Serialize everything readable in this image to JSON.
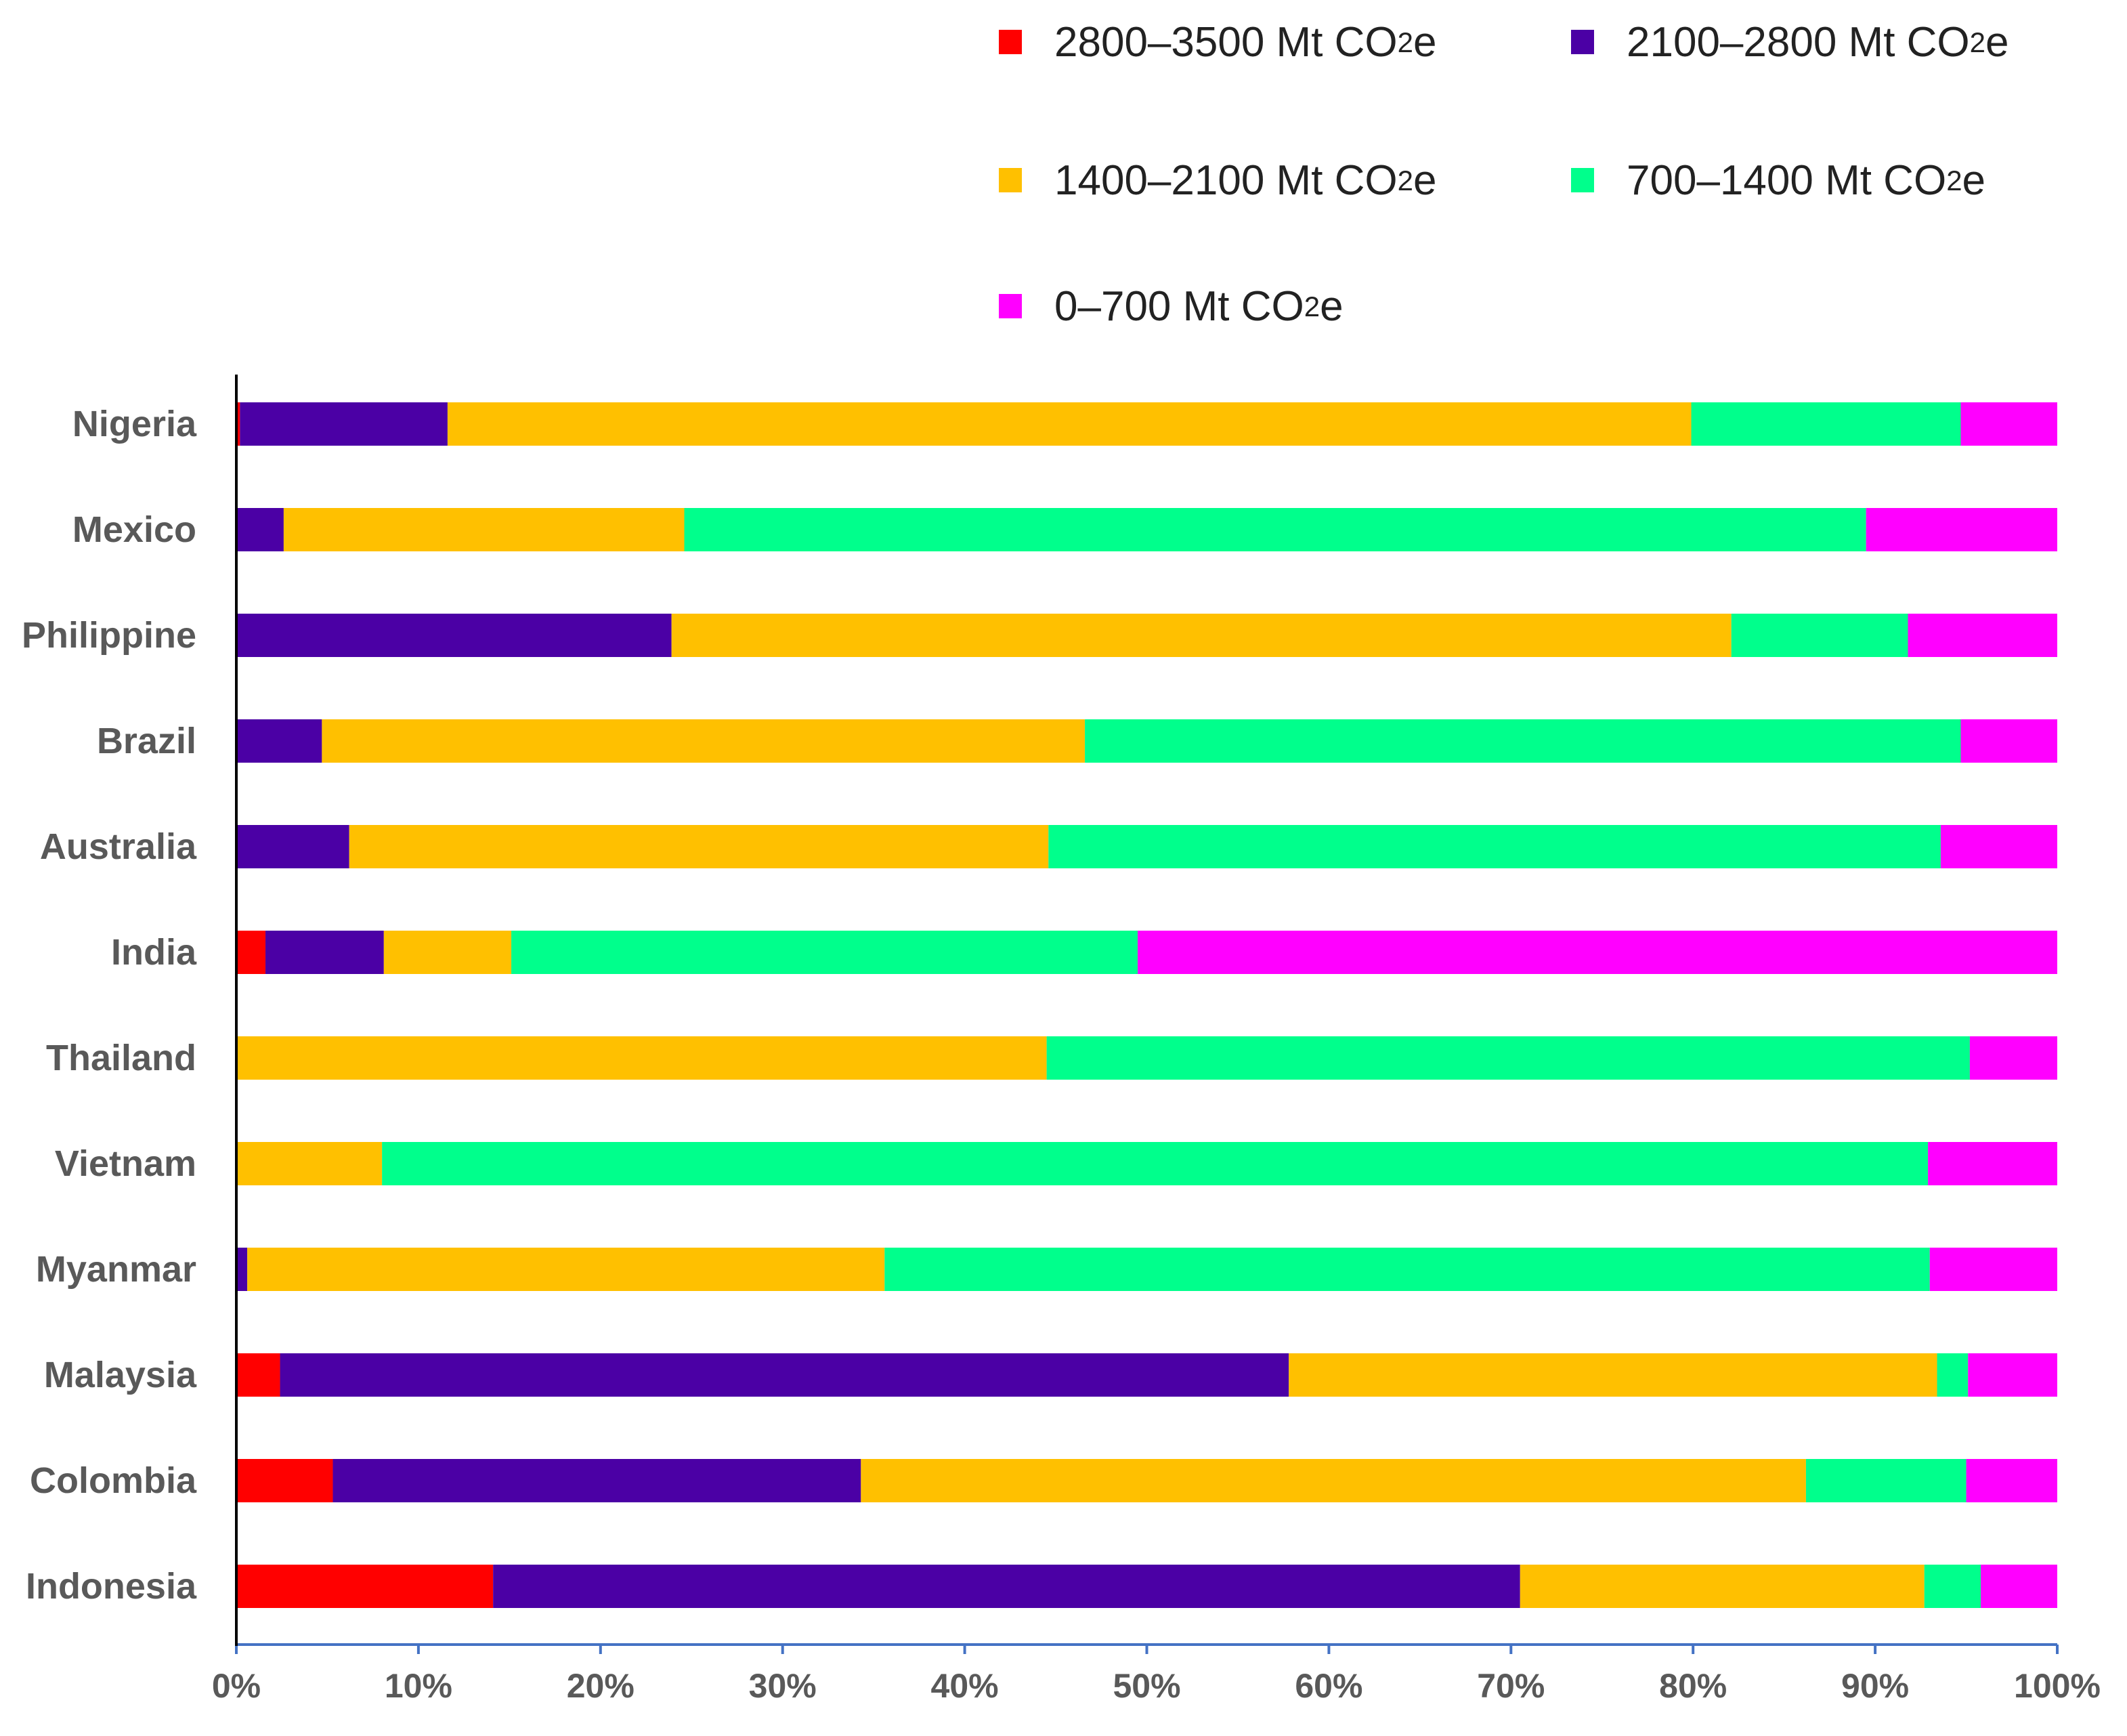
{
  "chart_data": {
    "type": "bar",
    "orientation": "horizontal",
    "stacked": "percent",
    "title": "",
    "xlabel": "",
    "ylabel": "",
    "xlim": [
      0,
      100
    ],
    "legend_position": "top-right",
    "grid": false,
    "categories": [
      "Nigeria",
      "Mexico",
      "Philippine",
      "Brazil",
      "Australia",
      "India",
      "Thailand",
      "Vietnam",
      "Myanmar",
      "Malaysia",
      "Colombia",
      "Indonesia"
    ],
    "series": [
      {
        "name": "2800–3500 Mt CO2e",
        "label_main": "2800–3500 Mt CO",
        "label_sub": "2",
        "label_end": "e",
        "color": "#ff0000",
        "values": [
          0.2,
          0,
          0,
          0,
          0,
          1.6,
          0,
          0,
          0,
          2.4,
          5.3,
          14.1
        ]
      },
      {
        "name": "2100–2800 Mt CO2e",
        "label_main": "2100–2800 Mt CO",
        "label_sub": "2",
        "label_end": "e",
        "color": "#4b00a5",
        "values": [
          11.4,
          2.6,
          23.9,
          4.7,
          6.2,
          6.5,
          0,
          0,
          0.6,
          55.4,
          29.0,
          56.4
        ]
      },
      {
        "name": "1400–2100 Mt CO2e",
        "label_main": "1400–2100 Mt CO",
        "label_sub": "2",
        "label_end": "e",
        "color": "#ffc000",
        "values": [
          68.3,
          22.0,
          58.2,
          41.9,
          38.4,
          7.0,
          44.5,
          8.0,
          35.0,
          35.6,
          51.9,
          22.2
        ]
      },
      {
        "name": "700–1400 Mt CO2e",
        "label_main": "700–1400 Mt CO",
        "label_sub": "2",
        "label_end": "e",
        "color": "#00ff8c",
        "values": [
          14.8,
          64.9,
          9.7,
          48.1,
          49.0,
          34.4,
          50.7,
          84.9,
          57.4,
          1.7,
          8.8,
          3.1
        ]
      },
      {
        "name": "0–700 Mt CO2e",
        "label_main": "0–700 Mt CO",
        "label_sub": "2",
        "label_end": "e",
        "color": "#ff00ff",
        "values": [
          5.3,
          10.5,
          8.2,
          5.3,
          6.4,
          50.5,
          4.8,
          7.1,
          7.0,
          4.9,
          5.0,
          4.2
        ]
      }
    ],
    "ticks": [
      "0%",
      "10%",
      "20%",
      "30%",
      "40%",
      "50%",
      "60%",
      "70%",
      "80%",
      "90%",
      "100%"
    ],
    "axis_color": "#4472c4"
  }
}
